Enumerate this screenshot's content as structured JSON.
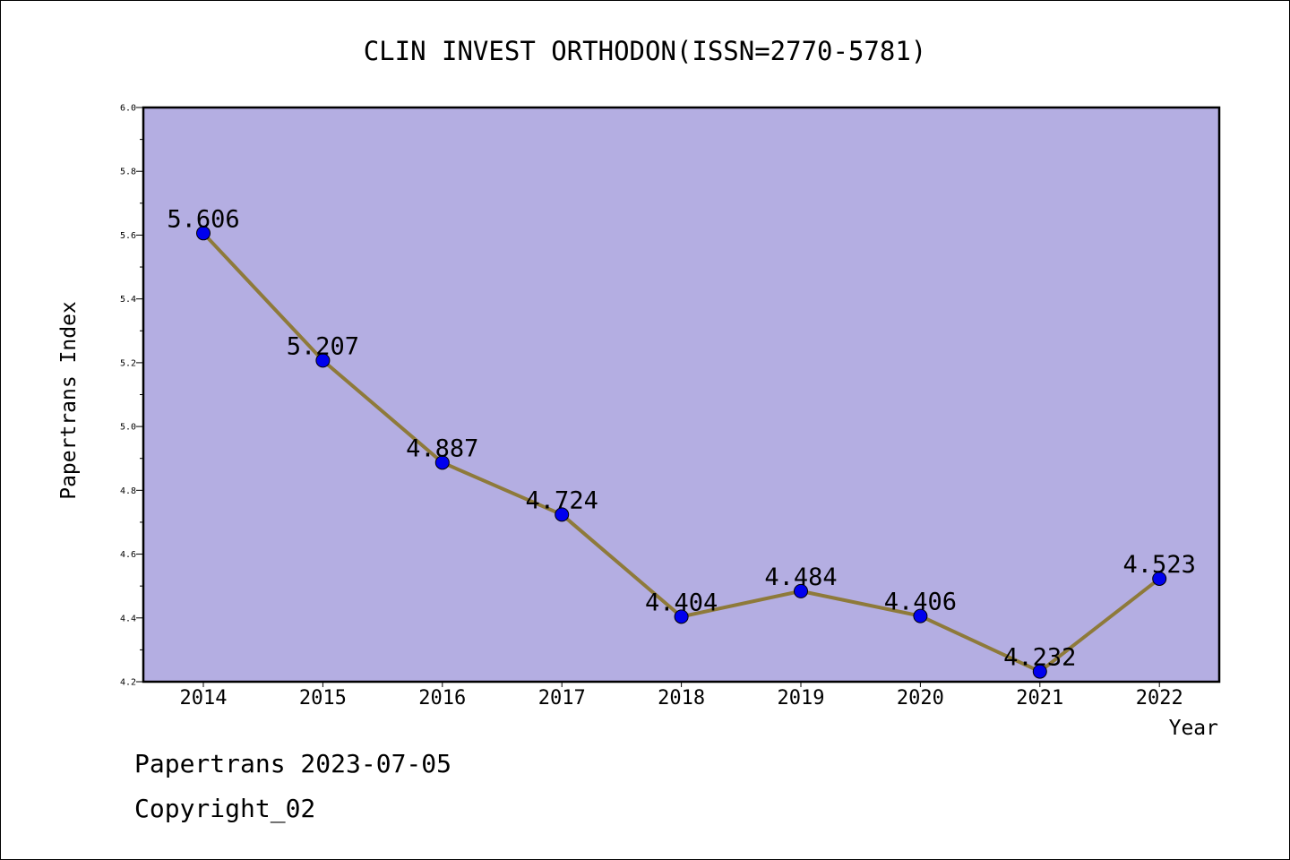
{
  "chart_data": {
    "type": "line",
    "title": "CLIN INVEST ORTHODON(ISSN=2770-5781)",
    "xlabel": "Year",
    "ylabel": "Papertrans Index",
    "categories": [
      "2014",
      "2015",
      "2016",
      "2017",
      "2018",
      "2019",
      "2020",
      "2021",
      "2022"
    ],
    "values": [
      5.606,
      5.207,
      4.887,
      4.724,
      4.404,
      4.484,
      4.406,
      4.232,
      4.523
    ],
    "data_labels": [
      "5.606",
      "5.207",
      "4.887",
      "4.724",
      "4.404",
      "4.484",
      "4.406",
      "4.232",
      "4.523"
    ],
    "ylim": [
      4.2,
      6.0
    ],
    "yticks": [
      "4.2",
      "4.4",
      "4.6",
      "4.8",
      "5.0",
      "5.2",
      "5.4",
      "5.6",
      "5.8",
      "6.0"
    ],
    "grid": false,
    "colors": {
      "plot_background": "#b4aee2",
      "line": "#8e7a3a",
      "marker": "#0000ee"
    }
  },
  "footer": {
    "line1": "Papertrans 2023-07-05",
    "line2": "Copyright_02"
  }
}
